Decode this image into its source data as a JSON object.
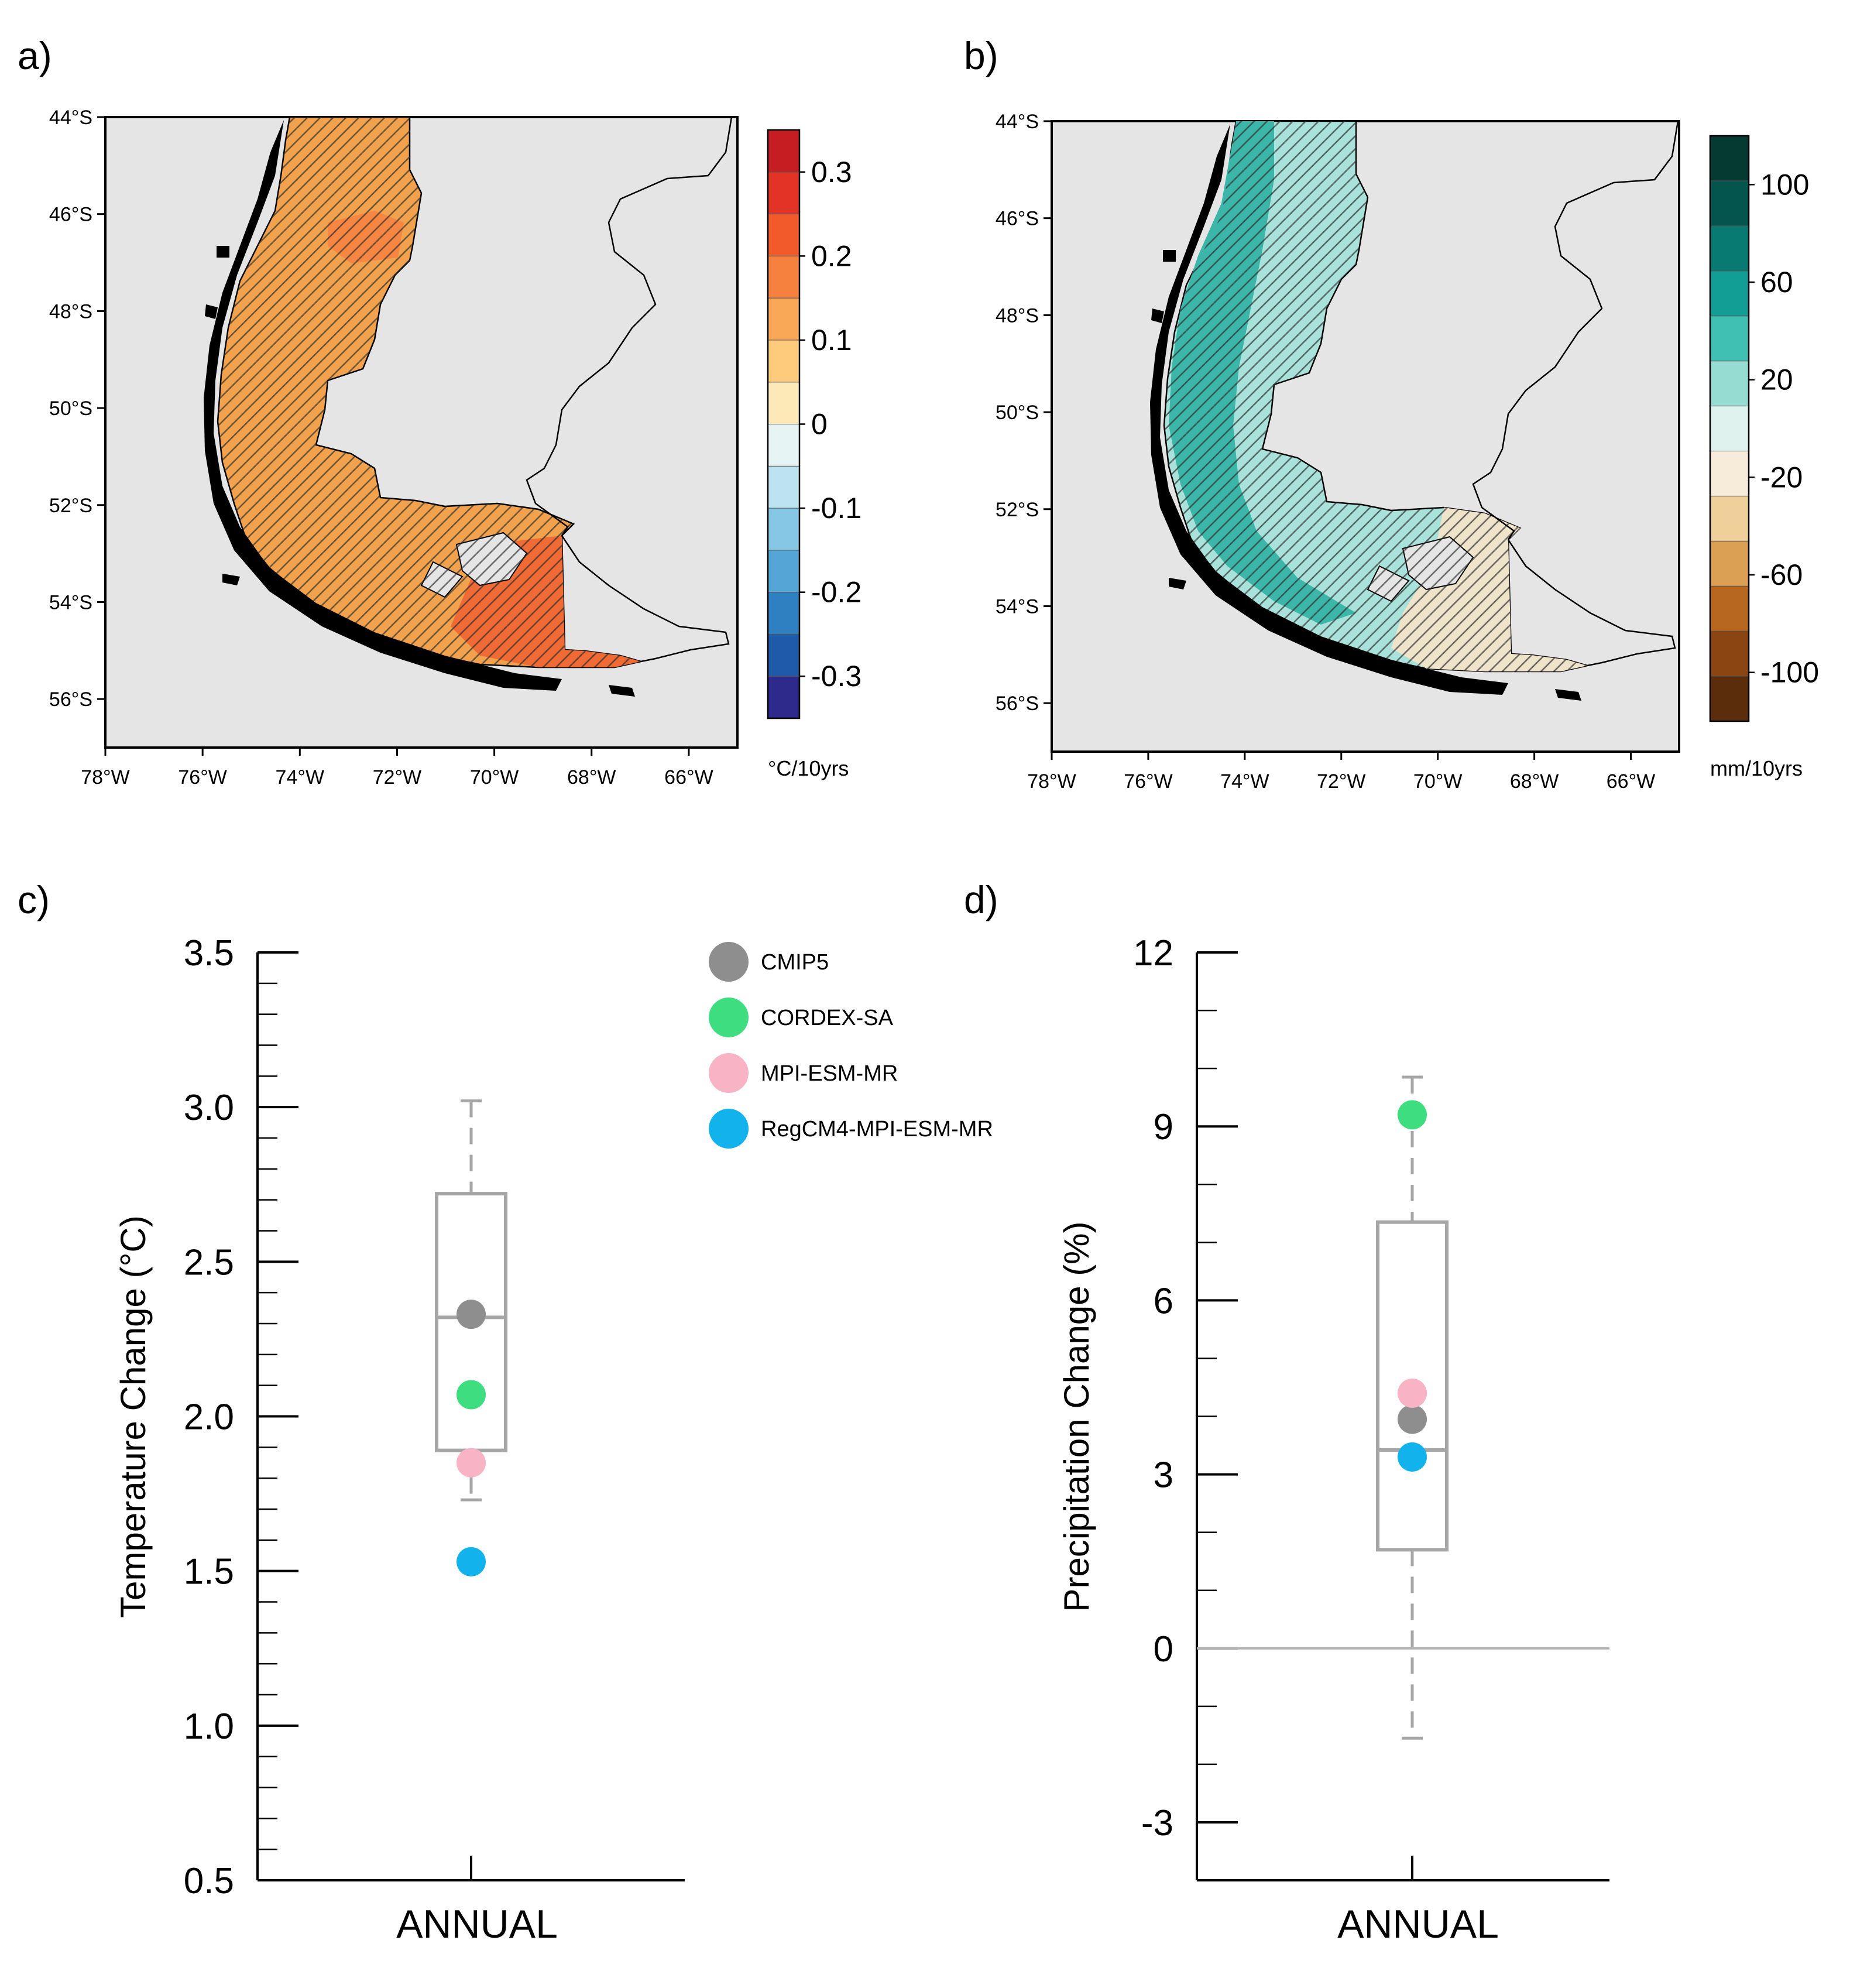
{
  "figure": {
    "panel_labels": [
      "a)",
      "b)",
      "c)",
      "d)"
    ]
  },
  "chart_data": [
    {
      "panel": "a)",
      "type": "heatmap",
      "title": "",
      "lat_ticks": [
        "44°S",
        "46°S",
        "48°S",
        "50°S",
        "52°S",
        "54°S",
        "56°S"
      ],
      "lon_ticks": [
        "78°W",
        "76°W",
        "74°W",
        "72°W",
        "70°W",
        "68°W",
        "66°W"
      ],
      "lat_range": [
        -57,
        -44
      ],
      "lon_range": [
        -78,
        -65
      ],
      "colorbar": {
        "units": "°C/10yrs",
        "tick_labels": [
          "0.3",
          "0.2",
          "0.1",
          "0",
          "-0.1",
          "-0.2",
          "-0.3"
        ],
        "range": [
          -0.35,
          0.35
        ],
        "colors": [
          "#2e2a8c",
          "#1f5aa8",
          "#2f80c0",
          "#55a6d6",
          "#87c7e6",
          "#bde3f0",
          "#e6f4f4",
          "#fde8b8",
          "#fccb7c",
          "#f9a857",
          "#f6803e",
          "#f25a2c",
          "#e33326",
          "#c61d23"
        ]
      },
      "mean_color": "#f2a24c",
      "hot_color": "#f06a35",
      "hatching": true
    },
    {
      "panel": "b)",
      "type": "heatmap",
      "title": "",
      "lat_ticks": [
        "44°S",
        "46°S",
        "48°S",
        "50°S",
        "52°S",
        "54°S",
        "56°S"
      ],
      "lon_ticks": [
        "78°W",
        "76°W",
        "74°W",
        "72°W",
        "70°W",
        "68°W",
        "66°W"
      ],
      "lat_range": [
        -57,
        -44
      ],
      "lon_range": [
        -78,
        -65
      ],
      "colorbar": {
        "units": "mm/10yrs",
        "tick_labels": [
          "100",
          "60",
          "20",
          "-20",
          "-60",
          "-100"
        ],
        "range": [
          -120,
          120
        ],
        "colors": [
          "#5b2d0a",
          "#8a4512",
          "#b8681e",
          "#dca055",
          "#f0d09a",
          "#f7ebda",
          "#dff2ee",
          "#97dcd2",
          "#3fc0b2",
          "#129e94",
          "#097a72",
          "#05554f",
          "#053a33"
        ]
      },
      "mean_color": "#a9e2da",
      "wet_color": "#3cb6a8",
      "dry_color": "#efe3c9",
      "hatching": true
    },
    {
      "panel": "c)",
      "type": "scatter",
      "subtype": "boxplot",
      "ylabel": "Temperature Change (°C)",
      "xlabel": "ANNUAL",
      "ylim": [
        0.5,
        3.5
      ],
      "yticks": [
        "0.5",
        "1.0",
        "1.5",
        "2.0",
        "2.5",
        "3.0",
        "3.5"
      ],
      "box": {
        "whisker_low": 1.73,
        "q1": 1.89,
        "median": 2.32,
        "q3": 2.72,
        "whisker_high": 3.02
      },
      "series": [
        {
          "name": "CMIP5",
          "value": 2.33,
          "color": "#8e8e8e"
        },
        {
          "name": "CORDEX-SA",
          "value": 2.07,
          "color": "#3ddd80"
        },
        {
          "name": "MPI-ESM-MR",
          "value": 1.85,
          "color": "#f8b4c4"
        },
        {
          "name": "RegCM4-MPI-ESM-MR",
          "value": 1.53,
          "color": "#12b2ec"
        }
      ],
      "legend": "top-right"
    },
    {
      "panel": "d)",
      "type": "scatter",
      "subtype": "boxplot",
      "ylabel": "Precipitation Change (%)",
      "xlabel": "ANNUAL",
      "ylim": [
        -4,
        12
      ],
      "yticks": [
        "-3",
        "0",
        "3",
        "6",
        "9",
        "12"
      ],
      "zero_line": 0,
      "box": {
        "whisker_low": -1.55,
        "q1": 1.7,
        "median": 3.42,
        "q3": 7.35,
        "whisker_high": 9.85
      },
      "series": [
        {
          "name": "CMIP5",
          "value": 3.95,
          "color": "#8e8e8e"
        },
        {
          "name": "CORDEX-SA",
          "value": 9.2,
          "color": "#3ddd80"
        },
        {
          "name": "MPI-ESM-MR",
          "value": 4.4,
          "color": "#f8b4c4"
        },
        {
          "name": "RegCM4-MPI-ESM-MR",
          "value": 3.3,
          "color": "#12b2ec"
        }
      ]
    }
  ]
}
